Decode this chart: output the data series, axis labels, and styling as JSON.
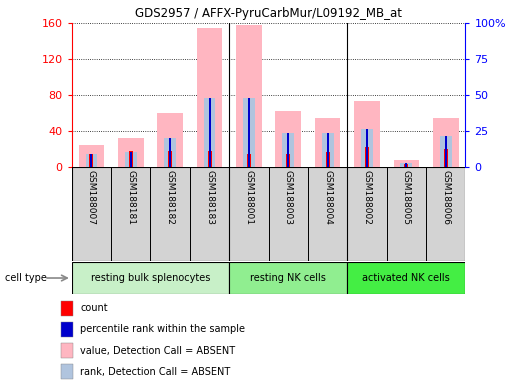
{
  "title": "GDS2957 / AFFX-PyruCarbMur/L09192_MB_at",
  "samples": [
    "GSM188007",
    "GSM188181",
    "GSM188182",
    "GSM188183",
    "GSM188001",
    "GSM188003",
    "GSM188004",
    "GSM188002",
    "GSM188005",
    "GSM188006"
  ],
  "value_absent": [
    25,
    32,
    60,
    155,
    158,
    62,
    55,
    73,
    8,
    55
  ],
  "rank_absent": [
    14,
    17,
    32,
    77,
    77,
    38,
    38,
    42,
    5,
    35
  ],
  "count": [
    15,
    18,
    18,
    18,
    15,
    15,
    17,
    22,
    3,
    20
  ],
  "percentile": [
    14,
    17,
    32,
    77,
    77,
    38,
    38,
    42,
    5,
    35
  ],
  "ylim_left": [
    0,
    160
  ],
  "ylim_right": [
    0,
    100
  ],
  "yticks_left": [
    0,
    40,
    80,
    120,
    160
  ],
  "yticks_right": [
    0,
    25,
    50,
    75,
    100
  ],
  "ytick_labels_right": [
    "0",
    "25",
    "50",
    "75",
    "100%"
  ],
  "value_color": "#FFB6C1",
  "rank_color": "#B0C4DE",
  "count_color": "#FF0000",
  "percentile_color": "#0000CC",
  "group_colors": [
    "#C8F0C8",
    "#90EE90",
    "#44EE44"
  ],
  "group_labels": [
    "resting bulk splenocytes",
    "resting NK cells",
    "activated NK cells"
  ],
  "group_ranges": [
    [
      0,
      4
    ],
    [
      4,
      7
    ],
    [
      7,
      10
    ]
  ],
  "legend_items": [
    {
      "label": "count",
      "color": "#FF0000"
    },
    {
      "label": "percentile rank within the sample",
      "color": "#0000CC"
    },
    {
      "label": "value, Detection Call = ABSENT",
      "color": "#FFB6C1"
    },
    {
      "label": "rank, Detection Call = ABSENT",
      "color": "#B0C4DE"
    }
  ]
}
